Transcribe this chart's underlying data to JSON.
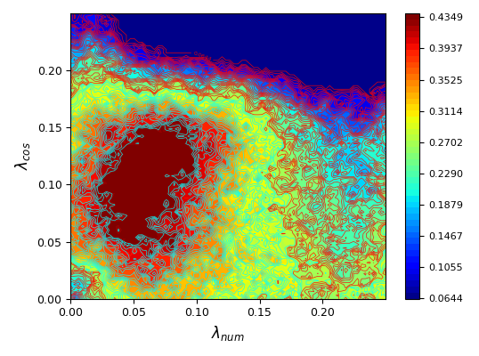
{
  "title": "",
  "xlabel": "$\\lambda_{num}$",
  "ylabel": "$\\lambda_{cos}$",
  "xlim": [
    0.0,
    0.25
  ],
  "ylim": [
    0.0,
    0.25
  ],
  "xticks": [
    0.0,
    0.05,
    0.1,
    0.15,
    0.2
  ],
  "yticks": [
    0.0,
    0.05,
    0.1,
    0.15,
    0.2
  ],
  "cbar_ticks": [
    0.0644,
    0.1055,
    0.1467,
    0.1879,
    0.229,
    0.2702,
    0.3114,
    0.3525,
    0.3937,
    0.4349
  ],
  "vmin": 0.0644,
  "vmax": 0.4349,
  "n_contour_levels": 50,
  "figsize": [
    5.38,
    4.0
  ],
  "dpi": 100,
  "colormap": "jet",
  "contour_threshold": 0.27,
  "xlabel_fontsize": 12,
  "ylabel_fontsize": 12,
  "seed": 42,
  "grid_n": 80
}
